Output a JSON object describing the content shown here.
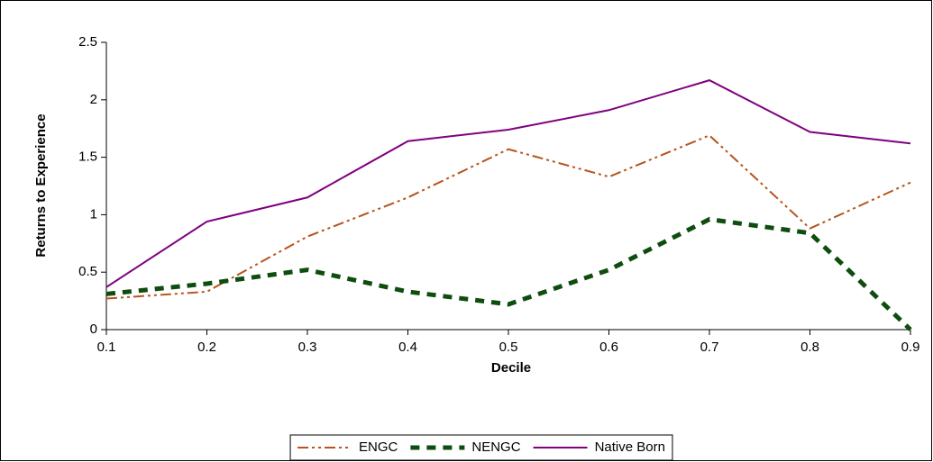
{
  "chart_data": {
    "type": "line",
    "x": [
      0.1,
      0.2,
      0.3,
      0.4,
      0.5,
      0.6,
      0.7,
      0.8,
      0.9
    ],
    "x_label": "Decile",
    "y_label": "Returns to Experience",
    "series": [
      {
        "name": "ENGC",
        "color": "#b5541c",
        "dash": "dash-dot-dot",
        "values": [
          0.27,
          0.33,
          0.81,
          1.15,
          1.57,
          1.33,
          1.69,
          0.88,
          1.28
        ]
      },
      {
        "name": "NENGC",
        "color": "#0f4d0f",
        "dash": "dashed",
        "values": [
          0.31,
          0.4,
          0.52,
          0.33,
          0.22,
          0.52,
          0.96,
          0.84,
          0
        ]
      },
      {
        "name": "Native Born",
        "color": "#800080",
        "dash": "solid",
        "values": [
          0.37,
          0.94,
          1.15,
          1.64,
          1.74,
          1.91,
          2.17,
          1.72,
          1.62
        ]
      }
    ],
    "xlim": [
      0.1,
      0.9
    ],
    "xticks": [
      0.1,
      0.2,
      0.3,
      0.4,
      0.5,
      0.6,
      0.7,
      0.8,
      0.9
    ],
    "ylim": [
      0,
      2.5
    ],
    "yticks": [
      0,
      0.5,
      1,
      1.5,
      2,
      2.5
    ],
    "grid": false,
    "legend": "bottom"
  }
}
